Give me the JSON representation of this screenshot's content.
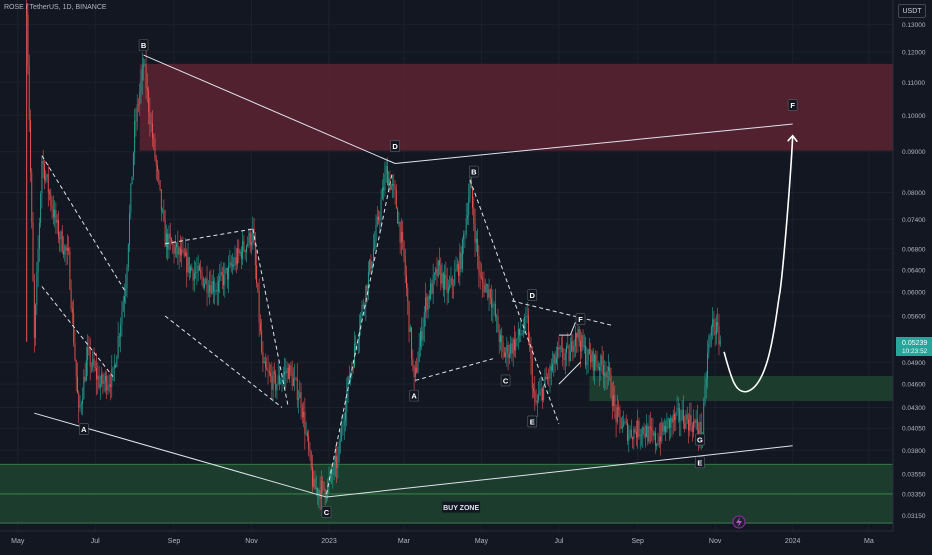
{
  "header": {
    "symbol": "ROSE / TetherUS, 1D, BINANCE",
    "currency": "USDT"
  },
  "price_tag": {
    "price": "0.05239",
    "countdown": "10:23:52",
    "value": 0.05239
  },
  "chart_data": {
    "type": "candlestick",
    "y_scale": "log",
    "ylim": [
      0.0301,
      0.1395
    ],
    "xlim": [
      "2022-04-17",
      "2024-03-20"
    ],
    "y_ticks": [
      {
        "value": 0.13,
        "label": "0.13000"
      },
      {
        "value": 0.12,
        "label": "0.12000"
      },
      {
        "value": 0.11,
        "label": "0.11000"
      },
      {
        "value": 0.1,
        "label": "0.10000"
      },
      {
        "value": 0.09,
        "label": "0.09000"
      },
      {
        "value": 0.08,
        "label": "0.08000"
      },
      {
        "value": 0.074,
        "label": "0.07400"
      },
      {
        "value": 0.068,
        "label": "0.06800"
      },
      {
        "value": 0.064,
        "label": "0.06400"
      },
      {
        "value": 0.06,
        "label": "0.06000"
      },
      {
        "value": 0.056,
        "label": "0.05600"
      },
      {
        "value": 0.049,
        "label": "0.04900"
      },
      {
        "value": 0.046,
        "label": "0.04600"
      },
      {
        "value": 0.043,
        "label": "0.04300"
      },
      {
        "value": 0.0405,
        "label": "0.04050"
      },
      {
        "value": 0.038,
        "label": "0.03800"
      },
      {
        "value": 0.0355,
        "label": "0.03550"
      },
      {
        "value": 0.0335,
        "label": "0.03350"
      },
      {
        "value": 0.0315,
        "label": "0.03150"
      }
    ],
    "x_ticks": [
      {
        "date": "2022-05-01",
        "label": "May"
      },
      {
        "date": "2022-07-01",
        "label": "Jul"
      },
      {
        "date": "2022-09-01",
        "label": "Sep"
      },
      {
        "date": "2022-11-01",
        "label": "Nov"
      },
      {
        "date": "2023-01-01",
        "label": "2023"
      },
      {
        "date": "2023-03-01",
        "label": "Mar"
      },
      {
        "date": "2023-05-01",
        "label": "May"
      },
      {
        "date": "2023-07-01",
        "label": "Jul"
      },
      {
        "date": "2023-09-01",
        "label": "Sep"
      },
      {
        "date": "2023-11-01",
        "label": "Nov"
      },
      {
        "date": "2024-01-01",
        "label": "2024"
      },
      {
        "date": "2024-03-01",
        "label": "Ma"
      }
    ],
    "price_path": [
      [
        "2022-05-08",
        0.138
      ],
      [
        "2022-05-14",
        0.052
      ],
      [
        "2022-05-20",
        0.088
      ],
      [
        "2022-06-01",
        0.072
      ],
      [
        "2022-06-10",
        0.066
      ],
      [
        "2022-06-18",
        0.042
      ],
      [
        "2022-06-25",
        0.05
      ],
      [
        "2022-07-05",
        0.046
      ],
      [
        "2022-07-15",
        0.047
      ],
      [
        "2022-07-25",
        0.062
      ],
      [
        "2022-08-01",
        0.096
      ],
      [
        "2022-08-08",
        0.116
      ],
      [
        "2022-08-15",
        0.094
      ],
      [
        "2022-08-25",
        0.07
      ],
      [
        "2022-09-05",
        0.067
      ],
      [
        "2022-09-15",
        0.064
      ],
      [
        "2022-09-25",
        0.062
      ],
      [
        "2022-10-05",
        0.061
      ],
      [
        "2022-10-15",
        0.064
      ],
      [
        "2022-10-25",
        0.068
      ],
      [
        "2022-11-02",
        0.071
      ],
      [
        "2022-11-10",
        0.048
      ],
      [
        "2022-11-20",
        0.046
      ],
      [
        "2022-11-30",
        0.048
      ],
      [
        "2022-12-10",
        0.044
      ],
      [
        "2022-12-20",
        0.034
      ],
      [
        "2022-12-30",
        0.034
      ],
      [
        "2023-01-08",
        0.037
      ],
      [
        "2023-01-15",
        0.045
      ],
      [
        "2023-01-25",
        0.055
      ],
      [
        "2023-02-05",
        0.068
      ],
      [
        "2023-02-15",
        0.085
      ],
      [
        "2023-02-22",
        0.079
      ],
      [
        "2023-03-01",
        0.066
      ],
      [
        "2023-03-09",
        0.046
      ],
      [
        "2023-03-18",
        0.058
      ],
      [
        "2023-03-28",
        0.064
      ],
      [
        "2023-04-05",
        0.06
      ],
      [
        "2023-04-15",
        0.066
      ],
      [
        "2023-04-22",
        0.082
      ],
      [
        "2023-04-30",
        0.062
      ],
      [
        "2023-05-08",
        0.06
      ],
      [
        "2023-05-18",
        0.05
      ],
      [
        "2023-05-28",
        0.052
      ],
      [
        "2023-06-06",
        0.055
      ],
      [
        "2023-06-12",
        0.043
      ],
      [
        "2023-06-20",
        0.046
      ],
      [
        "2023-06-30",
        0.05
      ],
      [
        "2023-07-10",
        0.05
      ],
      [
        "2023-07-14",
        0.054
      ],
      [
        "2023-07-22",
        0.05
      ],
      [
        "2023-07-30",
        0.049
      ],
      [
        "2023-08-08",
        0.048
      ],
      [
        "2023-08-15",
        0.042
      ],
      [
        "2023-08-25",
        0.04
      ],
      [
        "2023-09-05",
        0.0405
      ],
      [
        "2023-09-15",
        0.039
      ],
      [
        "2023-09-25",
        0.041
      ],
      [
        "2023-10-05",
        0.042
      ],
      [
        "2023-10-15",
        0.041
      ],
      [
        "2023-10-22",
        0.04
      ],
      [
        "2023-10-26",
        0.05
      ],
      [
        "2023-10-30",
        0.055
      ],
      [
        "2023-11-05",
        0.05239
      ]
    ],
    "zones": [
      {
        "name": "resistance",
        "y": [
          0.0903,
          0.116
        ],
        "x": [
          "2022-08-05",
          "2024-03-20"
        ],
        "color": "#5d2331"
      },
      {
        "name": "mid-support",
        "y": [
          0.0438,
          0.0471
        ],
        "x": [
          "2023-07-25",
          "2024-03-20"
        ],
        "color": "#1f4330"
      },
      {
        "name": "buy-zone",
        "y": [
          0.0308,
          0.0365
        ],
        "x": [
          "2022-04-17",
          "2024-03-20"
        ],
        "color": "#1f4330",
        "label": "BUY ZONE"
      }
    ],
    "trendlines": [
      {
        "from": [
          "2022-08-08",
          0.119
        ],
        "to": [
          "2023-02-22",
          0.087
        ],
        "style": "solid"
      },
      {
        "from": [
          "2023-02-22",
          0.087
        ],
        "to": [
          "2024-01-01",
          0.0975
        ],
        "style": "solid"
      },
      {
        "from": [
          "2022-05-14",
          0.0423
        ],
        "to": [
          "2022-12-30",
          0.0332
        ],
        "style": "solid"
      },
      {
        "from": [
          "2022-12-30",
          0.0332
        ],
        "to": [
          "2024-01-01",
          0.0385
        ],
        "style": "solid"
      },
      {
        "from": [
          "2022-05-20",
          0.089
        ],
        "to": [
          "2022-07-25",
          0.06
        ],
        "style": "dashed"
      },
      {
        "from": [
          "2022-05-20",
          0.061
        ],
        "to": [
          "2022-07-15",
          0.047
        ],
        "style": "dashed"
      },
      {
        "from": [
          "2022-08-25",
          0.069
        ],
        "to": [
          "2022-11-02",
          0.072
        ],
        "style": "dashed"
      },
      {
        "from": [
          "2022-08-25",
          0.056
        ],
        "to": [
          "2022-11-25",
          0.043
        ],
        "style": "dashed"
      },
      {
        "from": [
          "2022-11-02",
          0.072
        ],
        "to": [
          "2022-11-30",
          0.043
        ],
        "style": "dashed"
      },
      {
        "from": [
          "2022-12-30",
          0.0335
        ],
        "to": [
          "2023-02-20",
          0.085
        ],
        "style": "dashed"
      },
      {
        "from": [
          "2023-03-10",
          0.0465
        ],
        "to": [
          "2023-05-10",
          0.0495
        ],
        "style": "dashed"
      },
      {
        "from": [
          "2023-04-22",
          0.083
        ],
        "to": [
          "2023-07-01",
          0.041
        ],
        "style": "dashed"
      },
      {
        "from": [
          "2023-05-25",
          0.0585
        ],
        "to": [
          "2023-08-12",
          0.0545
        ],
        "style": "dashed"
      },
      {
        "from": [
          "2023-07-01",
          0.053
        ],
        "to": [
          "2023-07-10",
          0.053
        ],
        "style": "solid"
      },
      {
        "from": [
          "2023-07-10",
          0.053
        ],
        "to": [
          "2023-07-14",
          0.055
        ],
        "style": "solid"
      },
      {
        "from": [
          "2023-07-01",
          0.046
        ],
        "to": [
          "2023-07-18",
          0.049
        ],
        "style": "solid"
      }
    ],
    "wave_labels": [
      {
        "text": "A",
        "date": "2022-06-22",
        "value": 0.0404
      },
      {
        "text": "B",
        "date": "2022-08-08",
        "value": 0.1225
      },
      {
        "text": "C",
        "date": "2022-12-30",
        "value": 0.0318
      },
      {
        "text": "D",
        "date": "2023-02-22",
        "value": 0.0915
      },
      {
        "text": "A",
        "date": "2023-03-09",
        "value": 0.0445
      },
      {
        "text": "B",
        "date": "2023-04-25",
        "value": 0.085
      },
      {
        "text": "C",
        "date": "2023-05-20",
        "value": 0.0465
      },
      {
        "text": "D",
        "date": "2023-06-10",
        "value": 0.0595
      },
      {
        "text": "E",
        "date": "2023-06-10",
        "value": 0.0413
      },
      {
        "text": "F",
        "date": "2023-07-18",
        "value": 0.0555
      },
      {
        "text": "G",
        "date": "2023-10-20",
        "value": 0.0392
      },
      {
        "text": "E",
        "date": "2023-10-20",
        "value": 0.0367
      },
      {
        "text": "F",
        "date": "2024-01-01",
        "value": 0.103
      }
    ],
    "projection": {
      "points": [
        [
          "2023-11-08",
          0.0505
        ],
        [
          "2023-11-25",
          0.045
        ],
        [
          "2023-12-10",
          0.0455
        ],
        [
          "2023-12-22",
          0.06
        ],
        [
          "2024-01-01",
          0.094
        ]
      ],
      "color": "#ffffff"
    }
  }
}
